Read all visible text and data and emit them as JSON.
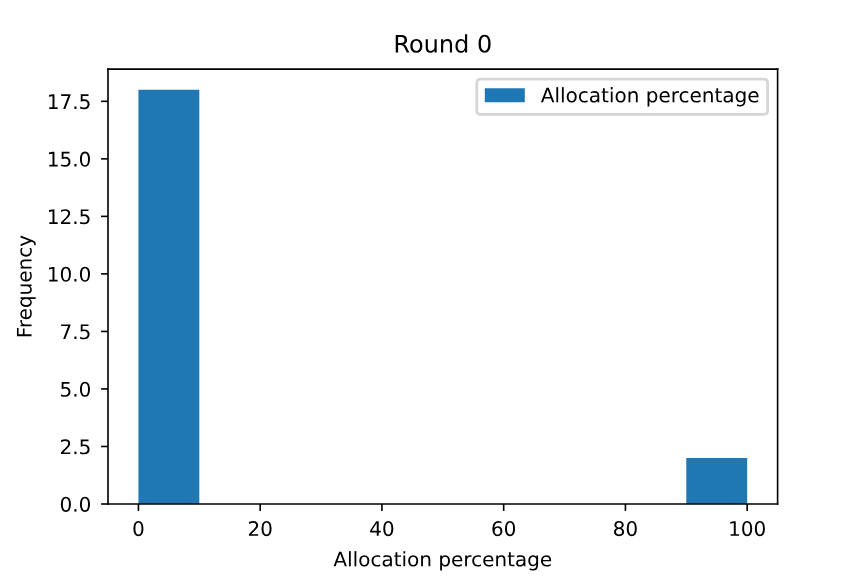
{
  "chart_data": {
    "type": "histogram",
    "title": "Round 0",
    "xlabel": "Allocation percentage",
    "ylabel": "Frequency",
    "bins": [
      0,
      10,
      20,
      30,
      40,
      50,
      60,
      70,
      80,
      90,
      100
    ],
    "series": [
      {
        "name": "Allocation percentage",
        "color": "#1f77b4",
        "values": [
          18,
          0,
          0,
          0,
          0,
          0,
          0,
          0,
          0,
          2
        ]
      }
    ],
    "xlim": [
      -5,
      105
    ],
    "xticks": [
      0,
      20,
      40,
      60,
      80,
      100
    ],
    "ylim": [
      0,
      18.9
    ],
    "yticks": [
      {
        "value": 0,
        "label": "0.0"
      },
      {
        "value": 2.5,
        "label": "2.5"
      },
      {
        "value": 5,
        "label": "5.0"
      },
      {
        "value": 7.5,
        "label": "7.5"
      },
      {
        "value": 10,
        "label": "10.0"
      },
      {
        "value": 12.5,
        "label": "12.5"
      },
      {
        "value": 15,
        "label": "15.0"
      },
      {
        "value": 17.5,
        "label": "17.5"
      }
    ],
    "legend": "top right",
    "grid": false
  }
}
